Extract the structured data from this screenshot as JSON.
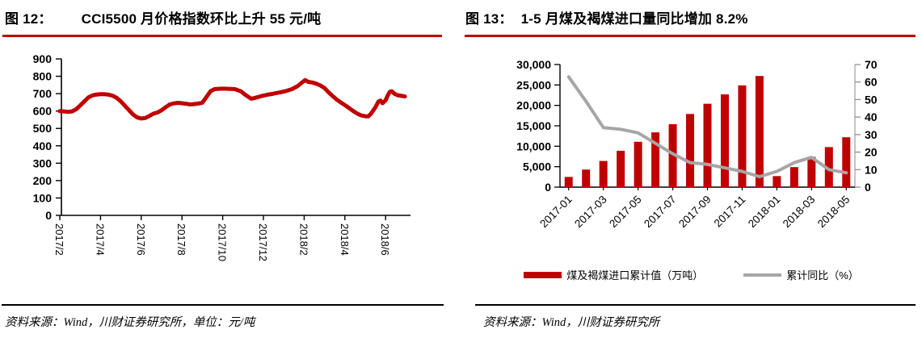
{
  "colors": {
    "red": "#C00000",
    "gray": "#A6A6A6",
    "axis": "#000000"
  },
  "fig12": {
    "label": "图 12：",
    "title": "CCI5500 月价格指数环比上升 55 元/吨",
    "source": "资料来源：Wind，川财证券研究所，单位：元/吨"
  },
  "fig13": {
    "label": "图 13：",
    "title": "1-5 月煤及褐煤进口量同比增加 8.2%",
    "source": "资料来源：Wind，川财证券研究所",
    "legend": [
      {
        "label": "煤及褐煤进口累计值（万吨）"
      },
      {
        "label": "累计同比（%）"
      }
    ]
  },
  "chart_data": [
    {
      "type": "line",
      "title": "CCI5500 月价格指数环比上升 55 元/吨",
      "unit": "元/吨",
      "ylim": [
        0,
        900
      ],
      "yticks": [
        0,
        100,
        200,
        300,
        400,
        500,
        600,
        700,
        800,
        900
      ],
      "xtick_labels": [
        "2017/2",
        "2017/4",
        "2017/6",
        "2017/8",
        "2017/10",
        "2017/12",
        "2018/2",
        "2018/4",
        "2018/6"
      ],
      "x_unit": "months_since_2017_02",
      "line_color": "#C00000",
      "grid": false,
      "points": [
        [
          0,
          600
        ],
        [
          0.2,
          598
        ],
        [
          0.4,
          595
        ],
        [
          0.6,
          598
        ],
        [
          0.8,
          610
        ],
        [
          1.0,
          632
        ],
        [
          1.2,
          655
        ],
        [
          1.4,
          678
        ],
        [
          1.6,
          690
        ],
        [
          1.8,
          695
        ],
        [
          2.0,
          697
        ],
        [
          2.2,
          697
        ],
        [
          2.4,
          694
        ],
        [
          2.6,
          688
        ],
        [
          2.8,
          675
        ],
        [
          3.0,
          655
        ],
        [
          3.2,
          630
        ],
        [
          3.4,
          605
        ],
        [
          3.6,
          580
        ],
        [
          3.8,
          563
        ],
        [
          4.0,
          557
        ],
        [
          4.2,
          560
        ],
        [
          4.4,
          572
        ],
        [
          4.6,
          585
        ],
        [
          4.8,
          592
        ],
        [
          5.0,
          605
        ],
        [
          5.2,
          622
        ],
        [
          5.4,
          638
        ],
        [
          5.6,
          644
        ],
        [
          5.8,
          647
        ],
        [
          6.0,
          645
        ],
        [
          6.2,
          642
        ],
        [
          6.4,
          638
        ],
        [
          6.6,
          640
        ],
        [
          6.8,
          643
        ],
        [
          7.0,
          648
        ],
        [
          7.2,
          680
        ],
        [
          7.4,
          714
        ],
        [
          7.6,
          726
        ],
        [
          7.8,
          728
        ],
        [
          8.0,
          729
        ],
        [
          8.3,
          728
        ],
        [
          8.6,
          726
        ],
        [
          8.9,
          713
        ],
        [
          9.1,
          694
        ],
        [
          9.4,
          671
        ],
        [
          9.6,
          676
        ],
        [
          9.9,
          686
        ],
        [
          10.2,
          694
        ],
        [
          10.5,
          700
        ],
        [
          10.8,
          707
        ],
        [
          11.1,
          715
        ],
        [
          11.4,
          726
        ],
        [
          11.7,
          745
        ],
        [
          11.9,
          765
        ],
        [
          12.05,
          778
        ],
        [
          12.2,
          768
        ],
        [
          12.4,
          764
        ],
        [
          12.6,
          757
        ],
        [
          12.8,
          747
        ],
        [
          13.0,
          732
        ],
        [
          13.2,
          708
        ],
        [
          13.4,
          686
        ],
        [
          13.6,
          666
        ],
        [
          13.8,
          649
        ],
        [
          14.0,
          634
        ],
        [
          14.2,
          618
        ],
        [
          14.4,
          601
        ],
        [
          14.6,
          586
        ],
        [
          14.8,
          575
        ],
        [
          15.0,
          570
        ],
        [
          15.15,
          569
        ],
        [
          15.3,
          588
        ],
        [
          15.5,
          622
        ],
        [
          15.65,
          655
        ],
        [
          15.75,
          660
        ],
        [
          15.85,
          645
        ],
        [
          16.0,
          662
        ],
        [
          16.1,
          688
        ],
        [
          16.2,
          710
        ],
        [
          16.3,
          714
        ],
        [
          16.45,
          698
        ],
        [
          16.6,
          691
        ],
        [
          16.8,
          687
        ],
        [
          16.95,
          684
        ]
      ]
    },
    {
      "type": "bar",
      "title": "1-5 月煤及褐煤进口量同比增加 8.2%",
      "categories": [
        "2017-01",
        "2017-02",
        "2017-03",
        "2017-04",
        "2017-05",
        "2017-06",
        "2017-07",
        "2017-08",
        "2017-09",
        "2017-10",
        "2017-11",
        "2017-12",
        "2018-01",
        "2018-02",
        "2018-03",
        "2018-04",
        "2018-05"
      ],
      "series": [
        {
          "name": "煤及褐煤进口累计值（万吨）",
          "kind": "bar",
          "axis": "left",
          "color": "#C00000",
          "values": [
            2500,
            4300,
            6400,
            8900,
            11100,
            13400,
            15400,
            17900,
            20400,
            22700,
            24900,
            27200,
            2700,
            4900,
            7400,
            9800,
            12200
          ]
        },
        {
          "name": "累计同比（%）",
          "kind": "line",
          "axis": "right",
          "color": "#A6A6A6",
          "values": [
            63,
            49,
            34,
            33,
            31,
            25,
            19,
            14,
            13,
            11,
            9,
            6,
            9,
            14,
            17,
            10,
            8.2
          ]
        }
      ],
      "ylim_left": [
        0,
        30000
      ],
      "ylim_right": [
        0,
        70
      ],
      "yticks_left": [
        "0",
        "5,000",
        "10,000",
        "15,000",
        "20,000",
        "25,000",
        "30,000"
      ],
      "yticks_right": [
        0,
        10,
        20,
        30,
        40,
        50,
        60,
        70
      ],
      "xtick_labels": [
        "2017-01",
        "2017-03",
        "2017-05",
        "2017-07",
        "2017-09",
        "2017-11",
        "2018-01",
        "2018-03",
        "2018-05"
      ],
      "legend_position": "bottom",
      "grid": false
    }
  ]
}
